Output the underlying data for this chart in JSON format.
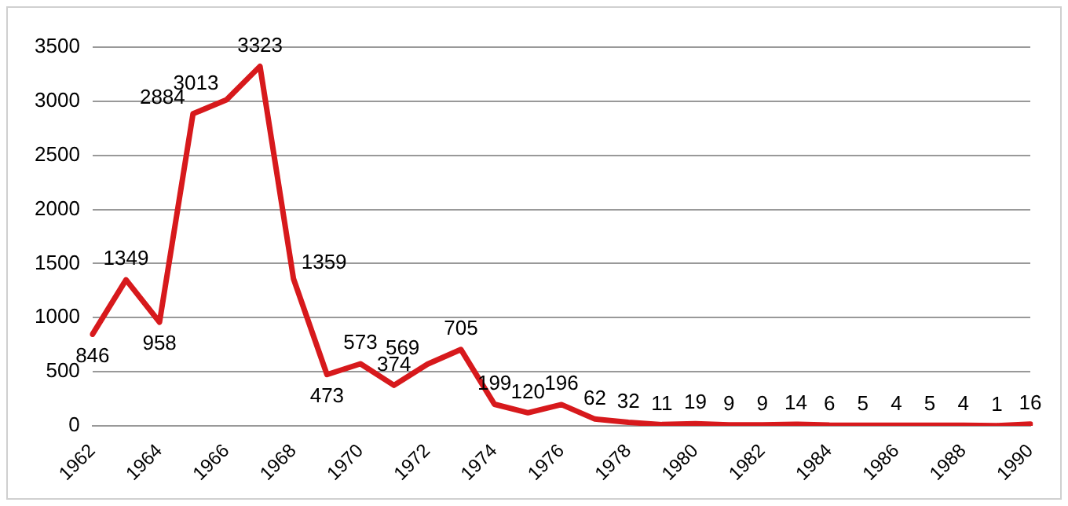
{
  "chart_data": {
    "type": "line",
    "categories": [
      "1962",
      null,
      "1964",
      null,
      "1966",
      null,
      "1968",
      null,
      "1970",
      null,
      "1972",
      null,
      "1974",
      null,
      "1976",
      null,
      "1978",
      null,
      "1980",
      null,
      "1982",
      null,
      "1984",
      null,
      "1986",
      null,
      "1988",
      null,
      "1990"
    ],
    "series": [
      {
        "color": "#d7191c",
        "values": [
          846,
          1349,
          958,
          2884,
          3013,
          3323,
          1359,
          473,
          573,
          374,
          569,
          705,
          199,
          120,
          196,
          62,
          32,
          11,
          19,
          9,
          9,
          14,
          6,
          5,
          4,
          5,
          4,
          1,
          16
        ]
      }
    ],
    "ylim": [
      0,
      3500
    ],
    "yticks": [
      0,
      500,
      1000,
      1500,
      2000,
      2500,
      3000,
      3500
    ],
    "grid": "y",
    "legend": false,
    "marker": "none",
    "line_style": "solid",
    "data_labels": true
  }
}
